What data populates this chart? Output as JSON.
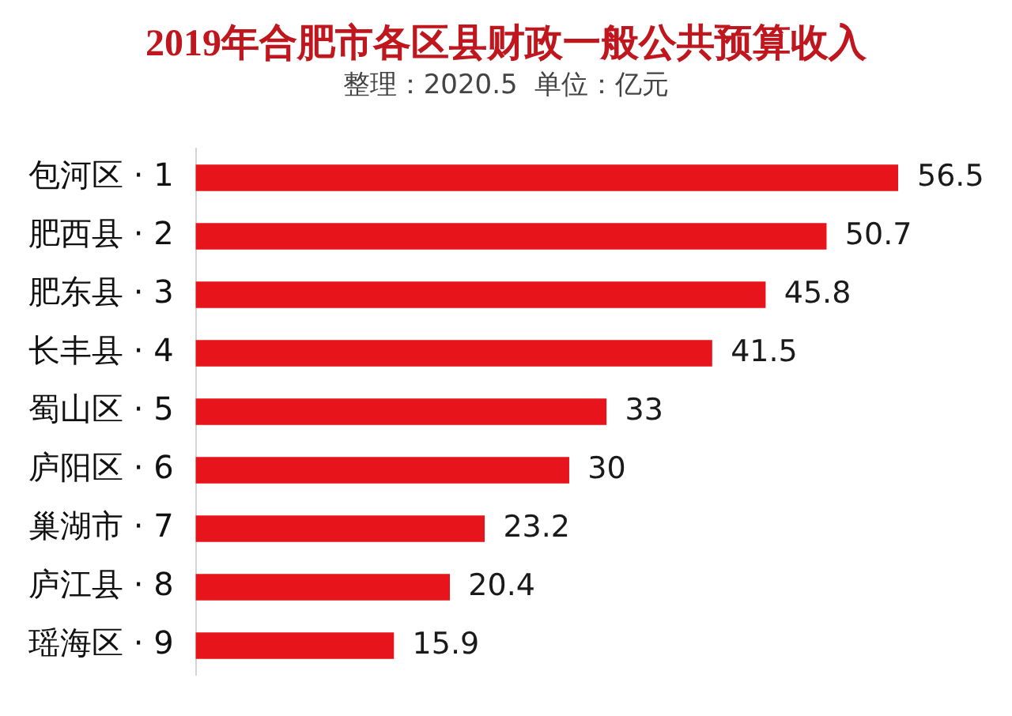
{
  "chart_data": {
    "type": "bar",
    "orientation": "horizontal",
    "title": "2019年合肥市各区县财政一般公共预算收入",
    "subtitle": "整理：2020.5  单位：亿元",
    "categories": [
      "包河区 · 1",
      "肥西县 · 2",
      "肥东县 · 3",
      "长丰县 · 4",
      "蜀山区 · 5",
      "庐阳区 · 6",
      "巢湖市 · 7",
      "庐江县 · 8",
      "瑶海区 · 9"
    ],
    "values": [
      56.5,
      50.7,
      45.8,
      41.5,
      33,
      30,
      23.2,
      20.4,
      15.9
    ],
    "color": "#e8141c",
    "data_labels": true,
    "grid": false,
    "legend": false,
    "tick_labels": "y"
  }
}
